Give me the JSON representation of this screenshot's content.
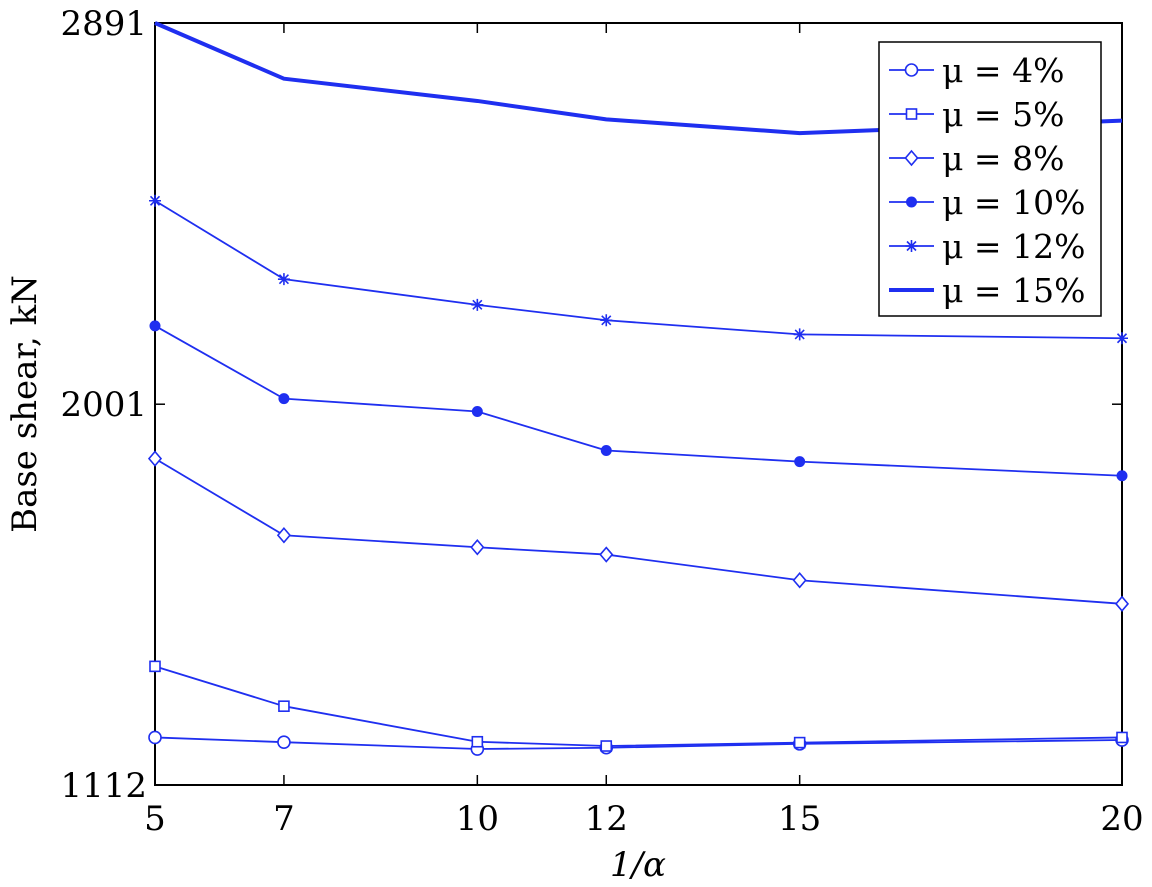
{
  "chart_data": {
    "type": "line",
    "title": "",
    "xlabel": "1/α",
    "ylabel": "Base shear, kN",
    "x": [
      5,
      7,
      10,
      12,
      15,
      20
    ],
    "x_ticks": [
      "5",
      "7",
      "10",
      "12",
      "15",
      "20"
    ],
    "xlim": [
      5,
      20
    ],
    "y_ticks": [
      "1112",
      "2001",
      "2891"
    ],
    "ylim": [
      1112,
      2891
    ],
    "grid": false,
    "legend_position": "top-right",
    "color": "#1f2ff0",
    "series": [
      {
        "name": "μ = 4%",
        "marker": "circle",
        "values": [
          1223,
          1212,
          1196,
          1199,
          1208,
          1217
        ]
      },
      {
        "name": "μ = 5%",
        "marker": "square",
        "values": [
          1389,
          1296,
          1213,
          1203,
          1211,
          1223
        ]
      },
      {
        "name": "μ = 8%",
        "marker": "diamond",
        "values": [
          1874,
          1695,
          1667,
          1650,
          1590,
          1535
        ]
      },
      {
        "name": "μ = 10%",
        "marker": "dot",
        "values": [
          2184,
          2014,
          1984,
          1893,
          1867,
          1834
        ]
      },
      {
        "name": "μ = 12%",
        "marker": "star",
        "values": [
          2476,
          2293,
          2233,
          2197,
          2164,
          2155
        ]
      },
      {
        "name": "μ = 15%",
        "marker": "none",
        "thick": true,
        "values": [
          2891,
          2761,
          2709,
          2666,
          2634,
          2663
        ]
      }
    ]
  }
}
